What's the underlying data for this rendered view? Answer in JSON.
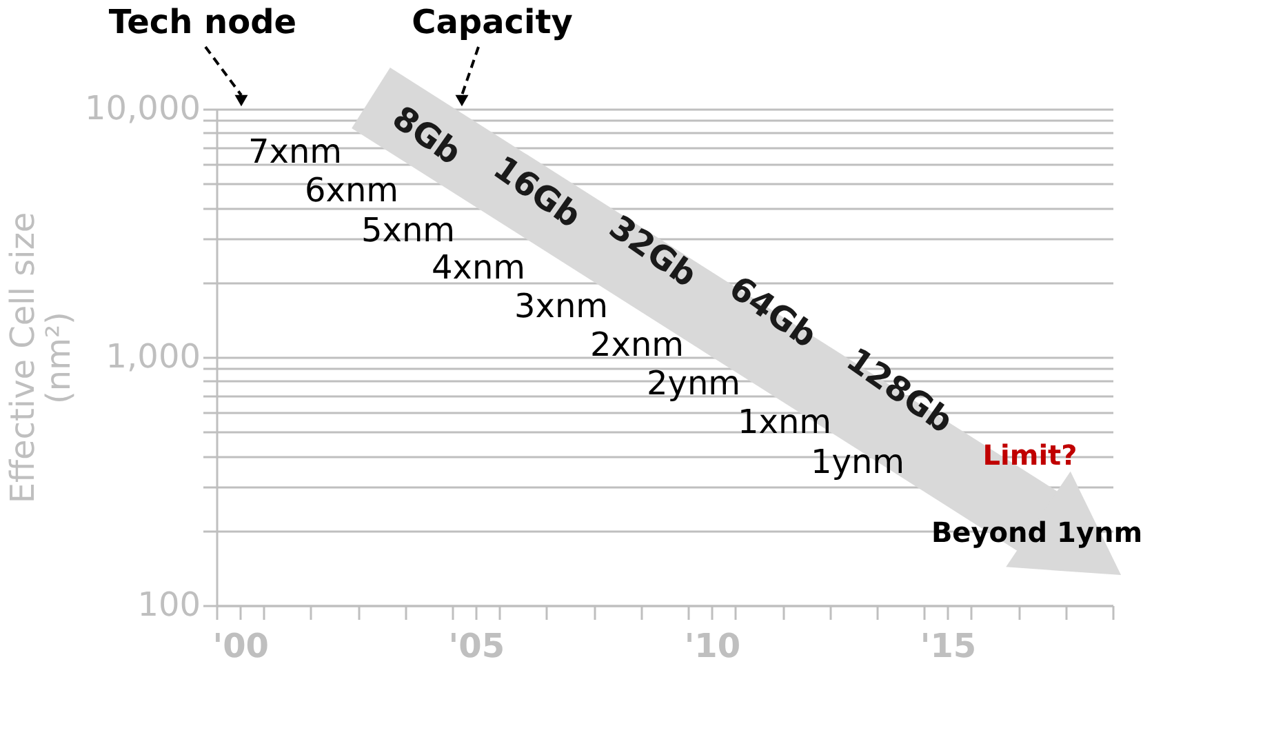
{
  "chart_data": {
    "type": "scatter",
    "ylabel": "Effective Cell size (nm²)",
    "log": "y",
    "xlim": [
      1999.5,
      2018.5
    ],
    "xticks": [
      {
        "value": 1999.5,
        "label": null
      },
      {
        "value": 2000,
        "label": "'00"
      },
      {
        "value": 2000.5,
        "label": null
      },
      {
        "value": 2001.5,
        "label": null
      },
      {
        "value": 2002.5,
        "label": null
      },
      {
        "value": 2003.5,
        "label": null
      },
      {
        "value": 2004.5,
        "label": null
      },
      {
        "value": 2005,
        "label": "'05"
      },
      {
        "value": 2005.5,
        "label": null
      },
      {
        "value": 2006.5,
        "label": null
      },
      {
        "value": 2007.5,
        "label": null
      },
      {
        "value": 2008.5,
        "label": null
      },
      {
        "value": 2009.5,
        "label": null
      },
      {
        "value": 2010,
        "label": "'10"
      },
      {
        "value": 2010.5,
        "label": null
      },
      {
        "value": 2011.5,
        "label": null
      },
      {
        "value": 2012.5,
        "label": null
      },
      {
        "value": 2013.5,
        "label": null
      },
      {
        "value": 2014.5,
        "label": null
      },
      {
        "value": 2015,
        "label": "'15"
      },
      {
        "value": 2015.5,
        "label": null
      },
      {
        "value": 2016.5,
        "label": null
      },
      {
        "value": 2017.5,
        "label": null
      },
      {
        "value": 2018.5,
        "label": null
      }
    ],
    "ylim": [
      100,
      10000
    ],
    "yticks": [
      {
        "value": 100,
        "label": "100"
      },
      {
        "value": 200,
        "label": null
      },
      {
        "value": 300,
        "label": null
      },
      {
        "value": 400,
        "label": null
      },
      {
        "value": 500,
        "label": null
      },
      {
        "value": 600,
        "label": null
      },
      {
        "value": 700,
        "label": null
      },
      {
        "value": 800,
        "label": null
      },
      {
        "value": 900,
        "label": null
      },
      {
        "value": 1000,
        "label": "1,000"
      },
      {
        "value": 2000,
        "label": null
      },
      {
        "value": 3000,
        "label": null
      },
      {
        "value": 4000,
        "label": null
      },
      {
        "value": 5000,
        "label": null
      },
      {
        "value": 6000,
        "label": null
      },
      {
        "value": 7000,
        "label": null
      },
      {
        "value": 8000,
        "label": null
      },
      {
        "value": 9000,
        "label": null
      },
      {
        "value": 10000,
        "label": "10,000"
      }
    ],
    "grid": "y",
    "annotations": [
      "Tech node",
      "Capacity",
      "7xnm",
      "6xnm",
      "5xnm",
      "4xnm",
      "3xnm",
      "2xnm",
      "2ynm",
      "1xnm",
      "1ynm",
      "8Gb",
      "16Gb",
      "32Gb",
      "64Gb",
      "128Gb",
      "Limit?",
      "Beyond 1ynm"
    ]
  }
}
